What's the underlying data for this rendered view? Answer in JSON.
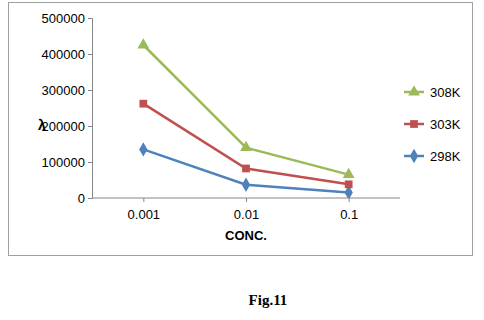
{
  "chart_data": {
    "type": "line",
    "title": "Fig.11",
    "x_label": "CONC.",
    "y_label": "λ",
    "categories": [
      "0.001",
      "0.01",
      "0.1"
    ],
    "series": [
      {
        "name": "308K",
        "color": "#9bbb59",
        "marker": "triangle",
        "values": [
          425000,
          140000,
          65000
        ]
      },
      {
        "name": "303K",
        "color": "#c0504d",
        "marker": "square",
        "values": [
          262000,
          82000,
          38000
        ]
      },
      {
        "name": "298K",
        "color": "#4f81bd",
        "marker": "diamond",
        "values": [
          135000,
          37000,
          15000
        ]
      }
    ],
    "ylim": [
      0,
      500000
    ],
    "yticks": [
      0,
      100000,
      200000,
      300000,
      400000,
      500000
    ],
    "grid": false,
    "legend": "right"
  }
}
